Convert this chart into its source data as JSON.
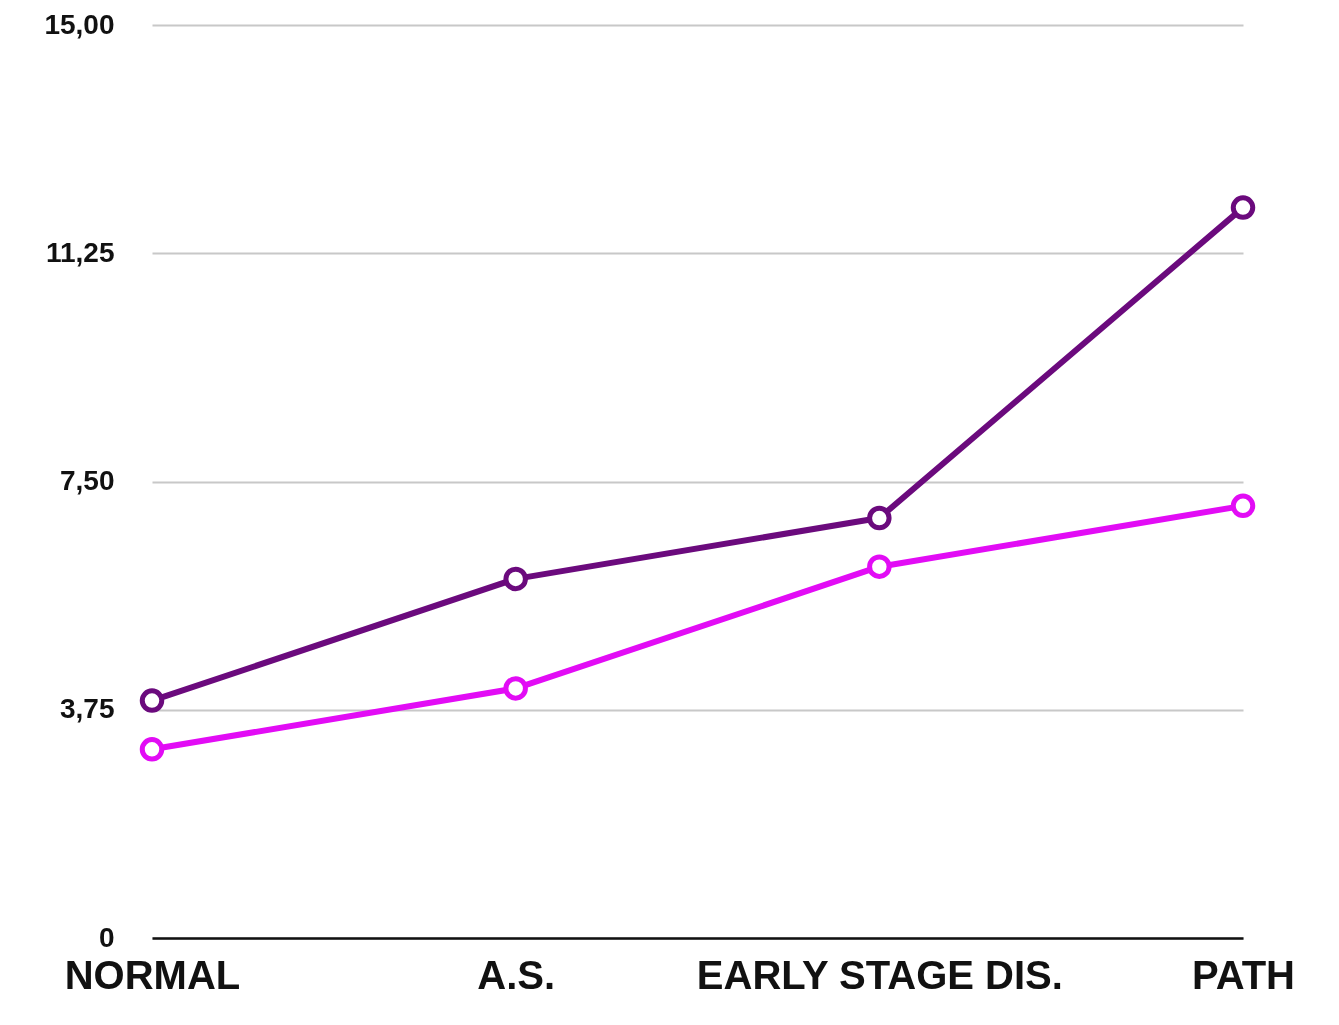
{
  "chart_data": {
    "type": "line",
    "categories": [
      "NORMAL",
      "A.S.",
      "EARLY STAGE DIS.",
      "PATH"
    ],
    "series": [
      {
        "color": "#6b0a7d",
        "values": [
          3.9,
          5.9,
          6.9,
          12.0
        ]
      },
      {
        "color": "#e20cf5",
        "values": [
          3.1,
          4.1,
          6.1,
          7.1
        ]
      }
    ],
    "ylim": [
      0,
      15
    ],
    "yticks": [
      {
        "value": 0,
        "label": "0"
      },
      {
        "value": 3.75,
        "label": "3,75"
      },
      {
        "value": 7.5,
        "label": "7,50"
      },
      {
        "value": 11.25,
        "label": "11,25"
      },
      {
        "value": 15,
        "label": "15,00"
      }
    ],
    "grid": "y",
    "marker": "circle",
    "line_style": "solid"
  }
}
